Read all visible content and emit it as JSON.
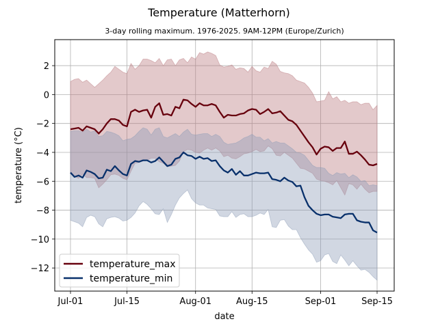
{
  "chart_data": {
    "type": "line",
    "title": "Temperature (Matterhorn)",
    "subtitle": "3-day rolling maximum. 1976-2025. 9AM-12PM (Europe/Zurich)",
    "xlabel": "date",
    "ylabel": "temperature (°C)",
    "x_ticks": [
      "Jul-01",
      "Jul-15",
      "Aug-01",
      "Aug-15",
      "Sep-01",
      "Sep-15"
    ],
    "y_ticks": [
      2,
      0,
      -2,
      -4,
      -6,
      -8,
      -10,
      -12
    ],
    "ylim": [
      -13.6,
      3.8
    ],
    "xlim": [
      "Jun-29",
      "Sep-17"
    ],
    "grid": true,
    "legend_position": "lower-left",
    "x": [
      "Jul-01",
      "Jul-02",
      "Jul-03",
      "Jul-04",
      "Jul-05",
      "Jul-06",
      "Jul-07",
      "Jul-08",
      "Jul-09",
      "Jul-10",
      "Jul-11",
      "Jul-12",
      "Jul-13",
      "Jul-14",
      "Jul-15",
      "Jul-16",
      "Jul-17",
      "Jul-18",
      "Jul-19",
      "Jul-20",
      "Jul-21",
      "Jul-22",
      "Jul-23",
      "Jul-24",
      "Jul-25",
      "Jul-26",
      "Jul-27",
      "Jul-28",
      "Jul-29",
      "Jul-30",
      "Jul-31",
      "Aug-01",
      "Aug-02",
      "Aug-03",
      "Aug-04",
      "Aug-05",
      "Aug-06",
      "Aug-07",
      "Aug-08",
      "Aug-09",
      "Aug-10",
      "Aug-11",
      "Aug-12",
      "Aug-13",
      "Aug-14",
      "Aug-15",
      "Aug-16",
      "Aug-17",
      "Aug-18",
      "Aug-19",
      "Aug-20",
      "Aug-21",
      "Aug-22",
      "Aug-23",
      "Aug-24",
      "Aug-25",
      "Aug-26",
      "Aug-27",
      "Aug-28",
      "Aug-29",
      "Aug-30",
      "Aug-31",
      "Sep-01",
      "Sep-02",
      "Sep-03",
      "Sep-04",
      "Sep-05",
      "Sep-06",
      "Sep-07",
      "Sep-08",
      "Sep-09",
      "Sep-10",
      "Sep-11",
      "Sep-12",
      "Sep-13",
      "Sep-14",
      "Sep-15"
    ],
    "series": [
      {
        "name": "temperature_max",
        "color": "#67000d",
        "band_color": "#b9777e",
        "values": [
          -2.4,
          -2.35,
          -2.3,
          -2.5,
          -2.2,
          -2.3,
          -2.4,
          -2.7,
          -2.4,
          -2.0,
          -1.7,
          -1.7,
          -1.8,
          -2.1,
          -2.2,
          -1.2,
          -1.05,
          -1.2,
          -1.1,
          -1.05,
          -1.6,
          -0.85,
          -0.6,
          -1.4,
          -1.35,
          -1.45,
          -0.85,
          -0.95,
          -0.35,
          -0.4,
          -0.65,
          -0.85,
          -0.6,
          -0.75,
          -0.75,
          -0.65,
          -0.75,
          -1.2,
          -1.6,
          -1.4,
          -1.45,
          -1.45,
          -1.35,
          -1.3,
          -1.1,
          -1.0,
          -1.05,
          -1.35,
          -1.2,
          -1.0,
          -1.3,
          -1.25,
          -1.15,
          -1.45,
          -1.75,
          -1.85,
          -2.1,
          -2.5,
          -2.9,
          -3.3,
          -3.65,
          -4.15,
          -3.75,
          -3.6,
          -3.65,
          -3.9,
          -3.7,
          -3.7,
          -3.25,
          -4.1,
          -4.1,
          -3.95,
          -4.2,
          -4.5,
          -4.85,
          -4.9,
          -4.8
        ],
        "upper": [
          0.9,
          1.05,
          1.1,
          0.85,
          1.0,
          0.75,
          0.5,
          0.75,
          1.0,
          1.3,
          1.55,
          1.95,
          1.75,
          1.55,
          1.45,
          2.15,
          1.75,
          2.0,
          2.45,
          2.45,
          2.35,
          2.2,
          2.5,
          2.0,
          2.4,
          2.45,
          2.0,
          2.4,
          2.5,
          2.2,
          2.6,
          2.45,
          2.9,
          2.8,
          2.95,
          2.85,
          2.7,
          2.05,
          1.9,
          1.95,
          2.05,
          1.75,
          1.85,
          1.8,
          1.55,
          1.95,
          1.65,
          1.55,
          1.9,
          1.8,
          2.3,
          2.1,
          1.6,
          1.5,
          1.45,
          1.3,
          1.0,
          0.9,
          0.8,
          0.5,
          0.1,
          -0.5,
          -0.45,
          -0.4,
          0.2,
          -0.3,
          -0.15,
          -0.5,
          -0.4,
          -0.6,
          -0.5,
          -0.5,
          -0.7,
          -0.6,
          -0.6,
          -1.05,
          -0.75
        ],
        "lower": [
          -5.5,
          -5.65,
          -5.8,
          -5.5,
          -5.75,
          -5.75,
          -5.8,
          -6.45,
          -6.2,
          -5.9,
          -5.55,
          -5.5,
          -5.6,
          -5.8,
          -5.9,
          -5.3,
          -4.75,
          -4.7,
          -4.6,
          -4.55,
          -4.4,
          -4.4,
          -4.65,
          -4.75,
          -5.0,
          -4.95,
          -4.9,
          -4.6,
          -3.95,
          -3.8,
          -3.85,
          -4.0,
          -4.05,
          -3.85,
          -3.7,
          -3.85,
          -3.7,
          -3.9,
          -4.3,
          -4.2,
          -4.4,
          -4.45,
          -4.3,
          -4.1,
          -4.05,
          -3.95,
          -3.8,
          -3.95,
          -3.9,
          -3.55,
          -3.75,
          -4.2,
          -4.25,
          -4.0,
          -4.2,
          -4.4,
          -4.75,
          -5.1,
          -5.15,
          -5.3,
          -5.45,
          -5.85,
          -5.95,
          -6.0,
          -6.1,
          -6.25,
          -5.95,
          -6.45,
          -6.95,
          -6.15,
          -6.25,
          -6.55,
          -6.2,
          -6.55,
          -6.8,
          -6.7,
          -6.7
        ]
      },
      {
        "name": "temperature_min",
        "color": "#08306b",
        "band_color": "#8b9cb6",
        "values": [
          -5.4,
          -5.7,
          -5.6,
          -5.75,
          -5.25,
          -5.35,
          -5.5,
          -5.8,
          -5.75,
          -5.2,
          -5.3,
          -4.95,
          -5.25,
          -5.5,
          -5.6,
          -4.8,
          -4.6,
          -4.65,
          -4.55,
          -4.55,
          -4.7,
          -4.6,
          -4.35,
          -4.65,
          -4.95,
          -4.85,
          -4.45,
          -4.35,
          -4.0,
          -4.2,
          -4.25,
          -4.45,
          -4.3,
          -4.45,
          -4.4,
          -4.6,
          -4.55,
          -4.95,
          -5.25,
          -5.4,
          -5.15,
          -5.55,
          -5.3,
          -5.6,
          -5.6,
          -5.5,
          -5.4,
          -5.45,
          -5.45,
          -5.4,
          -5.85,
          -5.9,
          -6.0,
          -5.75,
          -5.95,
          -6.05,
          -6.35,
          -6.3,
          -7.1,
          -7.7,
          -8.0,
          -8.25,
          -8.35,
          -8.3,
          -8.3,
          -8.45,
          -8.5,
          -8.55,
          -8.3,
          -8.25,
          -8.25,
          -8.7,
          -8.8,
          -8.85,
          -8.85,
          -9.4,
          -9.55
        ],
        "upper": [
          -2.55,
          -2.5,
          -2.5,
          -2.6,
          -2.4,
          -2.6,
          -2.5,
          -2.9,
          -2.85,
          -2.55,
          -2.6,
          -2.7,
          -2.85,
          -3.2,
          -3.1,
          -3.05,
          -2.85,
          -2.55,
          -2.3,
          -2.4,
          -2.8,
          -2.4,
          -2.3,
          -2.9,
          -3.0,
          -2.85,
          -2.7,
          -2.9,
          -2.6,
          -2.4,
          -2.75,
          -2.8,
          -2.75,
          -2.7,
          -2.7,
          -2.9,
          -2.75,
          -2.9,
          -3.3,
          -3.45,
          -3.4,
          -3.35,
          -3.2,
          -3.0,
          -2.9,
          -2.75,
          -2.95,
          -2.95,
          -3.2,
          -3.05,
          -3.35,
          -3.25,
          -3.35,
          -3.35,
          -3.55,
          -3.75,
          -4.0,
          -4.05,
          -4.2,
          -4.55,
          -4.9,
          -5.05,
          -5.05,
          -5.1,
          -5.45,
          -5.6,
          -5.4,
          -5.5,
          -5.45,
          -5.75,
          -5.55,
          -5.7,
          -6.0,
          -5.95,
          -6.3,
          -6.25,
          -6.3
        ],
        "lower": [
          -8.7,
          -8.8,
          -8.9,
          -9.15,
          -8.5,
          -8.35,
          -8.45,
          -8.95,
          -9.15,
          -8.6,
          -8.5,
          -8.45,
          -8.55,
          -8.75,
          -8.7,
          -8.5,
          -8.2,
          -7.7,
          -7.4,
          -7.6,
          -7.9,
          -8.25,
          -8.3,
          -7.9,
          -8.85,
          -8.3,
          -7.65,
          -7.15,
          -6.85,
          -6.6,
          -7.2,
          -7.5,
          -7.65,
          -7.65,
          -7.85,
          -7.9,
          -7.95,
          -8.4,
          -8.45,
          -8.45,
          -8.1,
          -8.5,
          -8.3,
          -8.25,
          -8.45,
          -8.45,
          -8.35,
          -8.2,
          -8.3,
          -7.95,
          -9.15,
          -9.2,
          -8.7,
          -8.65,
          -9.1,
          -9.35,
          -9.35,
          -9.9,
          -10.35,
          -10.75,
          -11.05,
          -11.6,
          -11.5,
          -11.1,
          -11.0,
          -11.55,
          -11.7,
          -11.1,
          -11.45,
          -11.85,
          -11.5,
          -11.85,
          -12.15,
          -12.1,
          -12.3,
          -12.6,
          -12.85
        ]
      }
    ]
  }
}
